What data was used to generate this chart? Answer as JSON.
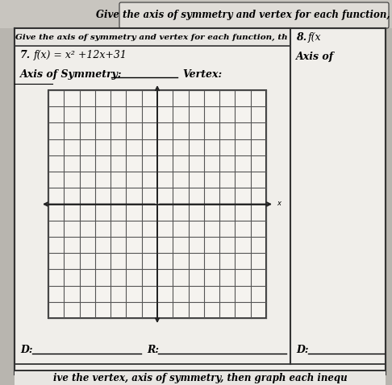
{
  "bg_outer": "#b8b5af",
  "bg_page": "#f0eeea",
  "bg_grid": "#f5f3ef",
  "header_text": "Give the axis of symmetry and vertex for each function, th",
  "prob7_num": "7.",
  "prob7_func": "f(x) = x² +12x+31",
  "axis_sym_label": "Axis of Symmetry:",
  "vertex_label": "Vertex:",
  "d_label": "D:",
  "r_label": "R:",
  "right_num": "8.",
  "right_func": "f(x",
  "right_axis": "Axis of",
  "right_d": "D:",
  "bottom_text": "ive the vertex, axis of symmetry, then graph each inequ",
  "grid_cols": 14,
  "grid_rows": 14,
  "grid_line_color": "#555555",
  "axis_line_color": "#222222",
  "border_color": "#333333",
  "divider_color": "#333333"
}
